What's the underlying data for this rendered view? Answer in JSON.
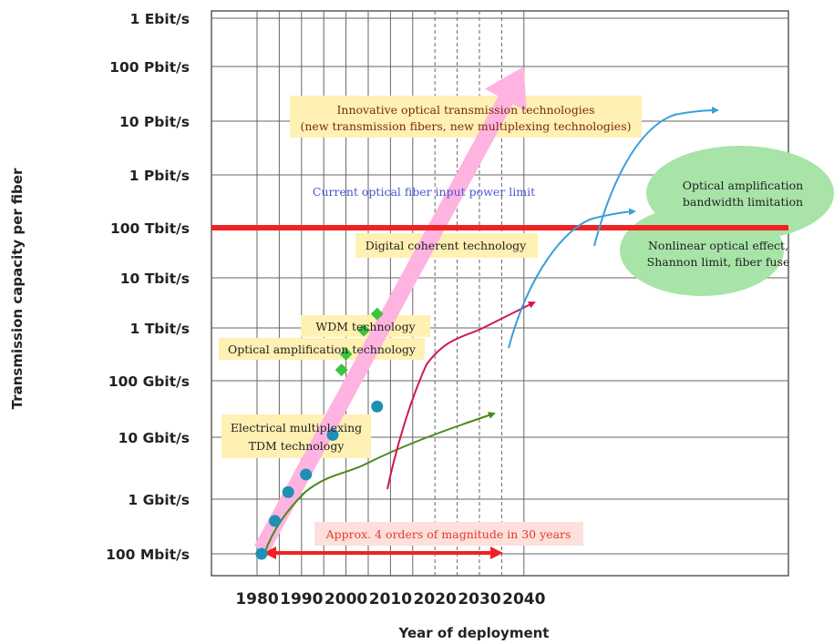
{
  "chart_data": {
    "type": "scatter",
    "xlabel": "Year of deployment",
    "ylabel": "Transmission capacity per fiber",
    "x_ticks": [
      "1980",
      "1990",
      "2000",
      "2010",
      "2020",
      "2030",
      "2040"
    ],
    "y_ticks": [
      "100 Mbit/s",
      "1 Gbit/s",
      "10 Gbit/s",
      "100 Gbit/s",
      "1 Tbit/s",
      "10 Tbit/s",
      "100 Tbit/s",
      "1 Pbit/s",
      "10 Pbit/s",
      "100 Pbit/s",
      "1 Ebit/s"
    ],
    "y_scale": "log",
    "grid": true,
    "series": [
      {
        "marker": "circle",
        "color": "#1f8fb5",
        "points": [
          {
            "year": 1981,
            "capacity_gbps": 0.1
          },
          {
            "year": 1984,
            "capacity_gbps": 0.4
          },
          {
            "year": 1987,
            "capacity_gbps": 1.3
          },
          {
            "year": 1991,
            "capacity_gbps": 2.5
          },
          {
            "year": 1997,
            "capacity_gbps": 11
          },
          {
            "year": 2007,
            "capacity_gbps": 35
          }
        ]
      },
      {
        "marker": "diamond",
        "color": "#3cc43c",
        "points": [
          {
            "year": 1999,
            "capacity_gbps": 160
          },
          {
            "year": 2000,
            "capacity_gbps": 320
          },
          {
            "year": 2004,
            "capacity_gbps": 900
          },
          {
            "year": 2007,
            "capacity_gbps": 1900
          }
        ]
      }
    ],
    "trend_arrow": {
      "from": {
        "year": 1981,
        "capacity_gbps": 0.12
      },
      "to": {
        "year": 2040,
        "capacity_gbps": 100000000
      },
      "color": "#ffb3e0"
    },
    "limit_line": {
      "capacity_gbps": 100000,
      "color": "#ee2222"
    },
    "annotations": {
      "innovative": [
        "Innovative optical transmission technologies",
        "(new transmission fibers, new multiplexing technologies)"
      ],
      "power_limit": "Current optical fiber input power limit",
      "digital_coherent": "Digital coherent technology",
      "wdm": "WDM technology",
      "optical_amp": "Optical amplification technology",
      "electrical": [
        "Electrical multiplexing",
        "TDM technology"
      ],
      "approx": "Approx. 4 orders of magnitude in 30 years",
      "bandwidth_limit": [
        "Optical amplification",
        "bandwidth limitation"
      ],
      "nonlinear": [
        "Nonlinear optical effect,",
        "Shannon limit, fiber fuse"
      ]
    }
  }
}
